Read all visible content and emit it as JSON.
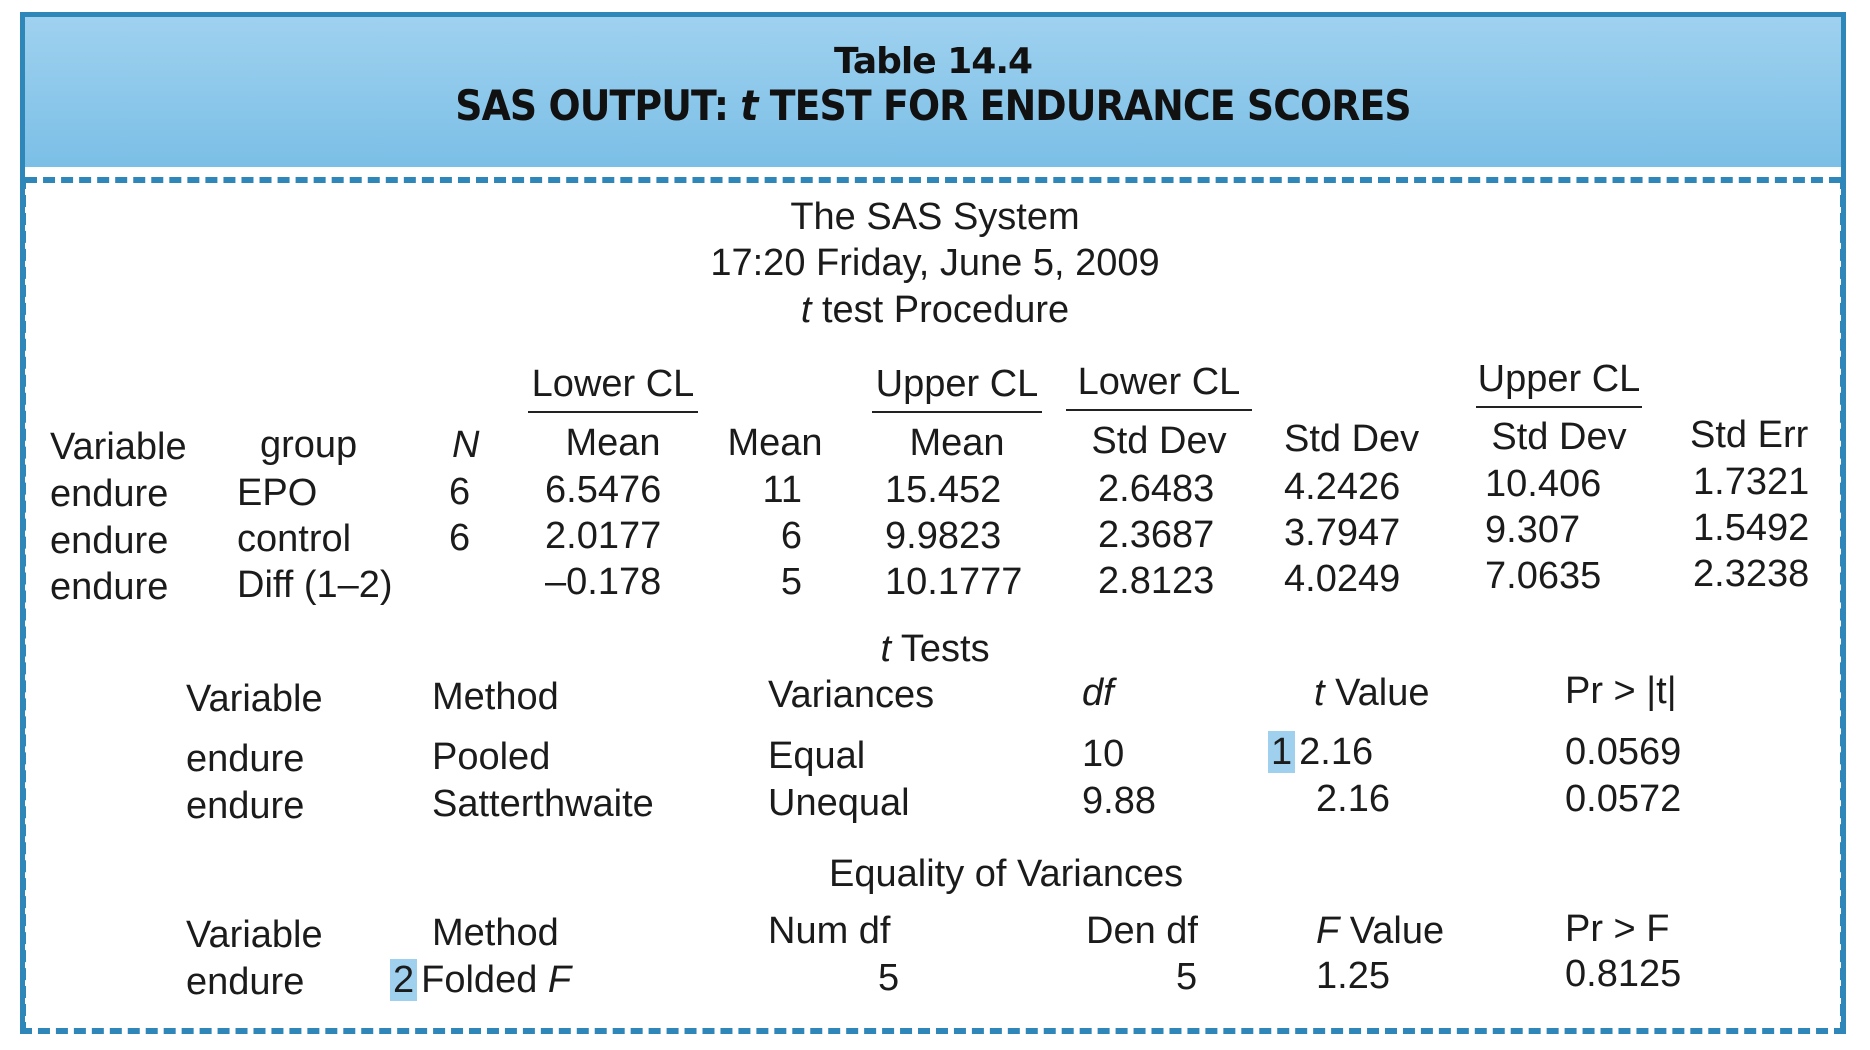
{
  "header": {
    "table_number": "Table 14.4",
    "title_pre": "SAS OUTPUT: ",
    "title_t": "t",
    "title_post": " TEST FOR ENDURANCE SCORES"
  },
  "system": {
    "name": "The SAS System",
    "timestamp": "17:20 Friday, June 5, 2009",
    "procedure_t": "t",
    "procedure_rest": " test Procedure"
  },
  "stats": {
    "upper_headers": {
      "lower_cl_mean": "Lower CL",
      "upper_cl_mean": "Upper CL",
      "lower_cl_sd": "Lower CL",
      "upper_cl_sd": "Upper CL"
    },
    "headers": {
      "variable": "Variable",
      "group": "group",
      "n": "N",
      "lower_mean": "Mean",
      "mean": "Mean",
      "upper_mean": "Mean",
      "lower_sd": "Std Dev",
      "sd": "Std Dev",
      "upper_sd": "Std Dev",
      "se": "Std Err"
    },
    "rows": [
      {
        "variable": "endure",
        "group": "EPO",
        "n": "6",
        "lower_mean": "6.5476",
        "mean": "11",
        "upper_mean": "15.452",
        "lower_sd": "2.6483",
        "sd": "4.2426",
        "upper_sd": "10.406",
        "se": "1.7321"
      },
      {
        "variable": "endure",
        "group": "control",
        "n": "6",
        "lower_mean": "2.0177",
        "mean": "6",
        "upper_mean": "9.9823",
        "lower_sd": "2.3687",
        "sd": "3.7947",
        "upper_sd": "9.307",
        "se": "1.5492"
      },
      {
        "variable": "endure",
        "group": "Diff (1–2)",
        "n": "",
        "lower_mean": "–0.178",
        "mean": "5",
        "upper_mean": "10.1777",
        "lower_sd": "2.8123",
        "sd": "4.0249",
        "upper_sd": "7.0635",
        "se": "2.3238"
      }
    ]
  },
  "ttests": {
    "title_t": "t",
    "title_rest": " Tests",
    "headers": {
      "variable": "Variable",
      "method": "Method",
      "variances": "Variances",
      "df": "df",
      "tvalue_t": "t",
      "tvalue_rest": " Value",
      "pr": "Pr > |t|"
    },
    "rows": [
      {
        "variable": "endure",
        "method": "Pooled",
        "variances": "Equal",
        "df": "10",
        "badge": "1",
        "tvalue": "2.16",
        "pr": "0.0569"
      },
      {
        "variable": "endure",
        "method": "Satterthwaite",
        "variances": "Unequal",
        "df": "9.88",
        "badge": "",
        "tvalue": "2.16",
        "pr": "0.0572"
      }
    ]
  },
  "variances": {
    "title": "Equality of Variances",
    "headers": {
      "variable": "Variable",
      "method": "Method",
      "num_df": "Num df",
      "den_df": "Den df",
      "fvalue_f": "F",
      "fvalue_rest": " Value",
      "pr": "Pr > F"
    },
    "row": {
      "variable": "endure",
      "badge": "2",
      "method_pre": "Folded ",
      "method_f": "F",
      "num_df": "5",
      "den_df": "5",
      "fvalue": "1.25",
      "pr": "0.8125"
    }
  },
  "colors": {
    "accent": "#2e87b8",
    "header_fill": "#9fd1ef"
  }
}
